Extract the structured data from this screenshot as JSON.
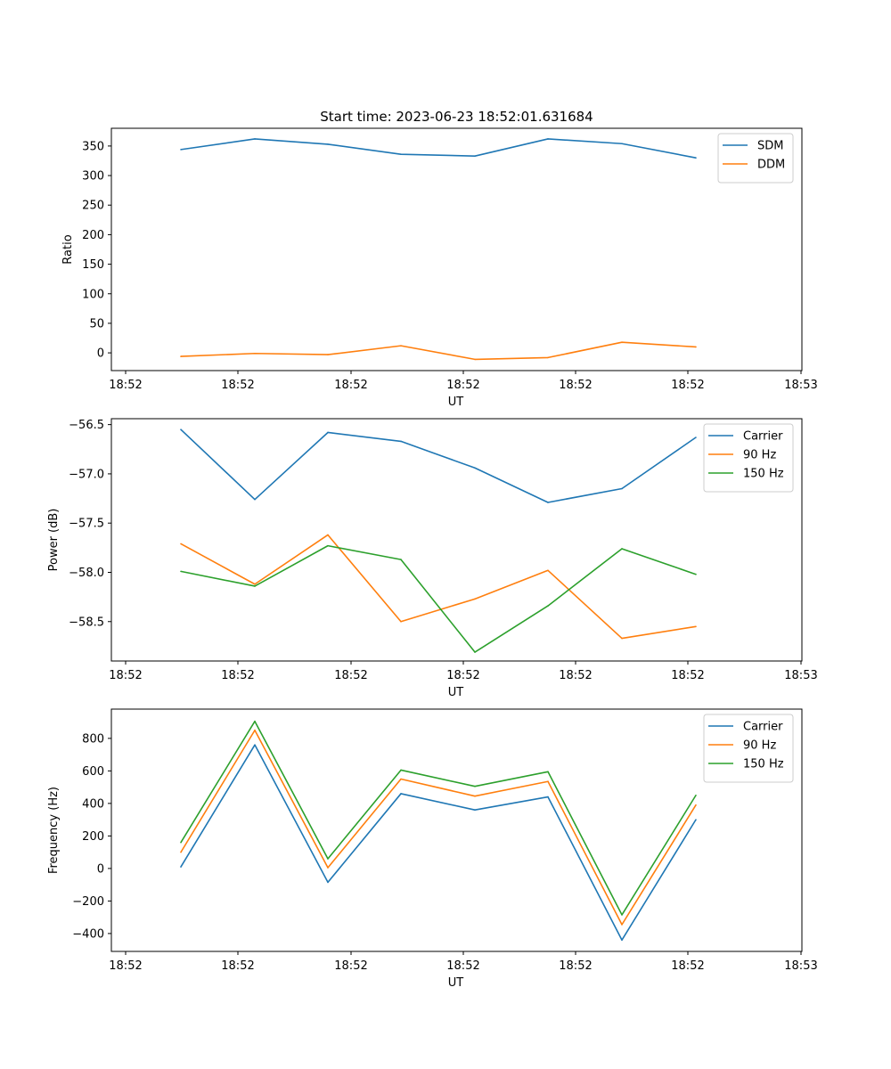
{
  "chart_data": [
    {
      "type": "line",
      "title": "Start time: 2023-06-23 18:52:01.631684",
      "xlabel": "UT",
      "ylabel": "Ratio",
      "x_tick_labels": [
        "18:52",
        "18:52",
        "18:52",
        "18:52",
        "18:52",
        "18:52",
        "18:53"
      ],
      "y_ticks": [
        0,
        50,
        100,
        150,
        200,
        250,
        300,
        350
      ],
      "ylim": [
        -30,
        380
      ],
      "legend": "top-right",
      "series": [
        {
          "name": "SDM",
          "color": "#1f77b4",
          "values": [
            344,
            362,
            353,
            336,
            333,
            362,
            354,
            330
          ]
        },
        {
          "name": "DDM",
          "color": "#ff7f0e",
          "values": [
            -6,
            -1,
            -3,
            12,
            -11,
            -8,
            18,
            10
          ]
        }
      ]
    },
    {
      "type": "line",
      "title": "",
      "xlabel": "UT",
      "ylabel": "Power (dB)",
      "x_tick_labels": [
        "18:52",
        "18:52",
        "18:52",
        "18:52",
        "18:52",
        "18:52",
        "18:53"
      ],
      "y_ticks": [
        -56.5,
        -57.0,
        -57.5,
        -58.0,
        -58.5
      ],
      "y_tick_labels": [
        "−56.5",
        "−57.0",
        "−57.5",
        "−58.0",
        "−58.5"
      ],
      "ylim": [
        -58.9,
        -56.44
      ],
      "legend": "top-right",
      "series": [
        {
          "name": "Carrier",
          "color": "#1f77b4",
          "values": [
            -56.55,
            -57.26,
            -56.58,
            -56.67,
            -56.94,
            -57.29,
            -57.15,
            -56.63
          ]
        },
        {
          "name": "90 Hz",
          "color": "#ff7f0e",
          "values": [
            -57.71,
            -58.12,
            -57.62,
            -58.5,
            -58.27,
            -57.98,
            -58.67,
            -58.55
          ]
        },
        {
          "name": "150 Hz",
          "color": "#2ca02c",
          "values": [
            -57.99,
            -58.14,
            -57.73,
            -57.87,
            -58.81,
            -58.34,
            -57.76,
            -58.02
          ]
        }
      ]
    },
    {
      "type": "line",
      "title": "",
      "xlabel": "UT",
      "ylabel": "Frequency (Hz)",
      "x_tick_labels": [
        "18:52",
        "18:52",
        "18:52",
        "18:52",
        "18:52",
        "18:52",
        "18:53"
      ],
      "y_ticks": [
        -400,
        -200,
        0,
        200,
        400,
        600,
        800
      ],
      "y_tick_labels": [
        "−400",
        "−200",
        "0",
        "200",
        "400",
        "600",
        "800"
      ],
      "ylim": [
        -510,
        980
      ],
      "legend": "top-right",
      "series": [
        {
          "name": "Carrier",
          "color": "#1f77b4",
          "values": [
            10,
            760,
            -85,
            460,
            360,
            440,
            -440,
            300
          ]
        },
        {
          "name": "90 Hz",
          "color": "#ff7f0e",
          "values": [
            100,
            850,
            5,
            550,
            445,
            535,
            -345,
            390
          ]
        },
        {
          "name": "150 Hz",
          "color": "#2ca02c",
          "values": [
            160,
            905,
            60,
            605,
            505,
            595,
            -285,
            450
          ]
        }
      ]
    }
  ]
}
